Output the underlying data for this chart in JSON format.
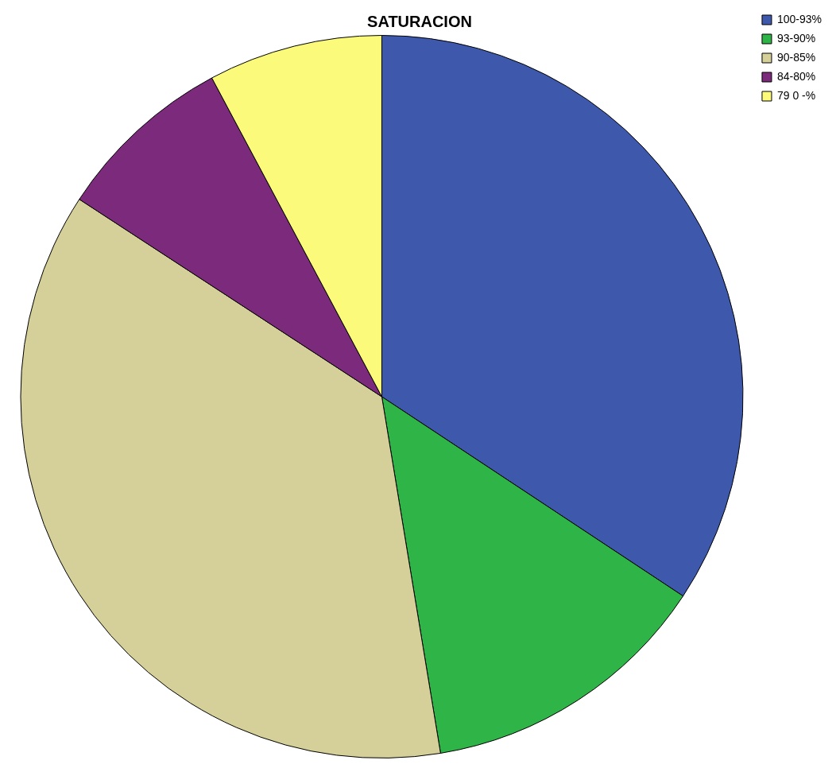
{
  "chart_data": {
    "type": "pie",
    "title": "SATURACION",
    "categories": [
      "100-93%",
      "93-90%",
      "90-85%",
      "84-80%",
      "79 0 -%"
    ],
    "values": [
      34.3,
      13.1,
      36.8,
      8.0,
      7.8
    ],
    "colors": [
      "#3e58ac",
      "#2fb547",
      "#d5cf99",
      "#7b2a7c",
      "#fbfa7a"
    ],
    "legend": "top right"
  }
}
